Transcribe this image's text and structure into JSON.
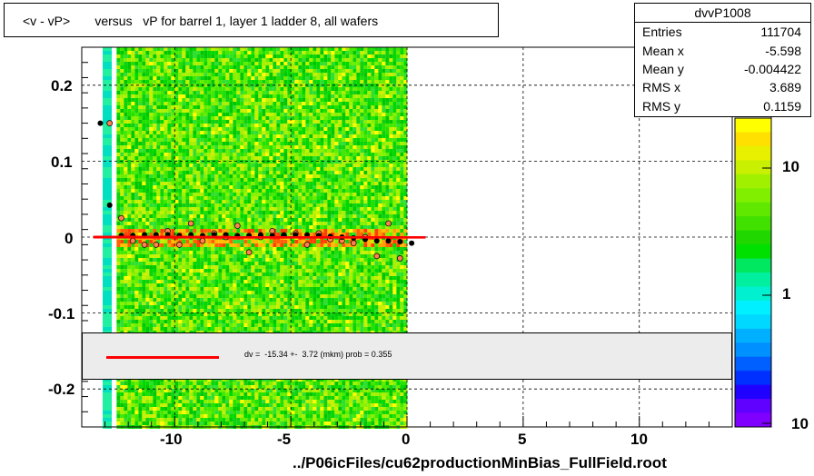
{
  "title": "<v - vP>       versus   vP for barrel 1, layer 1 ladder 8, all wafers",
  "stats": {
    "name": "dvvP1008",
    "rows": [
      {
        "label": "Entries",
        "value": "111704"
      },
      {
        "label": "Mean x",
        "value": "-5.598"
      },
      {
        "label": "Mean y",
        "value": "-0.004422"
      },
      {
        "label": "RMS x",
        "value": "3.689"
      },
      {
        "label": "RMS y",
        "value": "0.1159"
      }
    ]
  },
  "fit_text": "dv =  -15.34 +-  3.72 (mkm) prob = 0.355",
  "xlabel": "../P06icFiles/cu62productionMinBias_FullField.root",
  "colors": {
    "fit_line": "#ff0000",
    "profile_black": "#000000",
    "profile_open": "#ff7f50"
  },
  "chart_data": {
    "type": "heatmap",
    "title": "<v - vP>       versus   vP for barrel 1, layer 1 ladder 8, all wafers",
    "xlabel": "../P06icFiles/cu62productionMinBias_FullField.root",
    "ylabel": "",
    "xlim": [
      -14,
      14
    ],
    "ylim": [
      -0.25,
      0.25
    ],
    "xticks": [
      "-10",
      "-5",
      "0",
      "5",
      "10"
    ],
    "yticks": [
      "0.2",
      "0.1",
      "0",
      "-0.1",
      "-0.2"
    ],
    "zscale": "log",
    "zticks": [
      "10",
      "1",
      "10"
    ],
    "grid": true,
    "heatmap_x_range": [
      -12.5,
      0
    ],
    "profile_black": {
      "x": [
        -13.2,
        -12.8,
        -12.3,
        -11.8,
        -11.3,
        -10.8,
        -10.3,
        -9.8,
        -9.3,
        -8.8,
        -8.3,
        -7.8,
        -7.3,
        -6.8,
        -6.3,
        -5.8,
        -5.3,
        -4.8,
        -4.3,
        -3.8,
        -3.3,
        -2.8,
        -2.3,
        -1.8,
        -1.3,
        -0.8,
        -0.3,
        0.2
      ],
      "y": [
        0.15,
        0.042,
        0.002,
        0.002,
        0.003,
        0.003,
        0.003,
        0.002,
        0.003,
        0.002,
        0.003,
        0.003,
        0.002,
        0.002,
        0.003,
        0.002,
        0.003,
        0.003,
        0.003,
        0.002,
        0.001,
        0.0,
        -0.001,
        -0.003,
        -0.005,
        -0.005,
        -0.006,
        -0.008
      ]
    },
    "profile_open": {
      "x": [
        -12.8,
        -12.3,
        -11.8,
        -11.3,
        -10.8,
        -10.3,
        -9.8,
        -9.3,
        -8.8,
        -8.3,
        -7.8,
        -7.3,
        -6.8,
        -6.3,
        -5.8,
        -5.3,
        -4.8,
        -4.3,
        -3.8,
        -3.3,
        -2.8,
        -2.3,
        -1.8,
        -1.3,
        -0.8,
        -0.3
      ],
      "y": [
        0.15,
        0.025,
        -0.005,
        -0.01,
        -0.01,
        0.008,
        -0.01,
        0.018,
        -0.005,
        0.005,
        0.0,
        0.015,
        -0.02,
        0.0,
        0.008,
        0.002,
        0.005,
        -0.01,
        0.005,
        -0.003,
        -0.005,
        -0.008,
        0.0,
        -0.025,
        0.018,
        -0.028
      ]
    },
    "fit_line": {
      "x": [
        -13.5,
        0.8
      ],
      "y": [
        0.0,
        -0.0002
      ]
    }
  }
}
